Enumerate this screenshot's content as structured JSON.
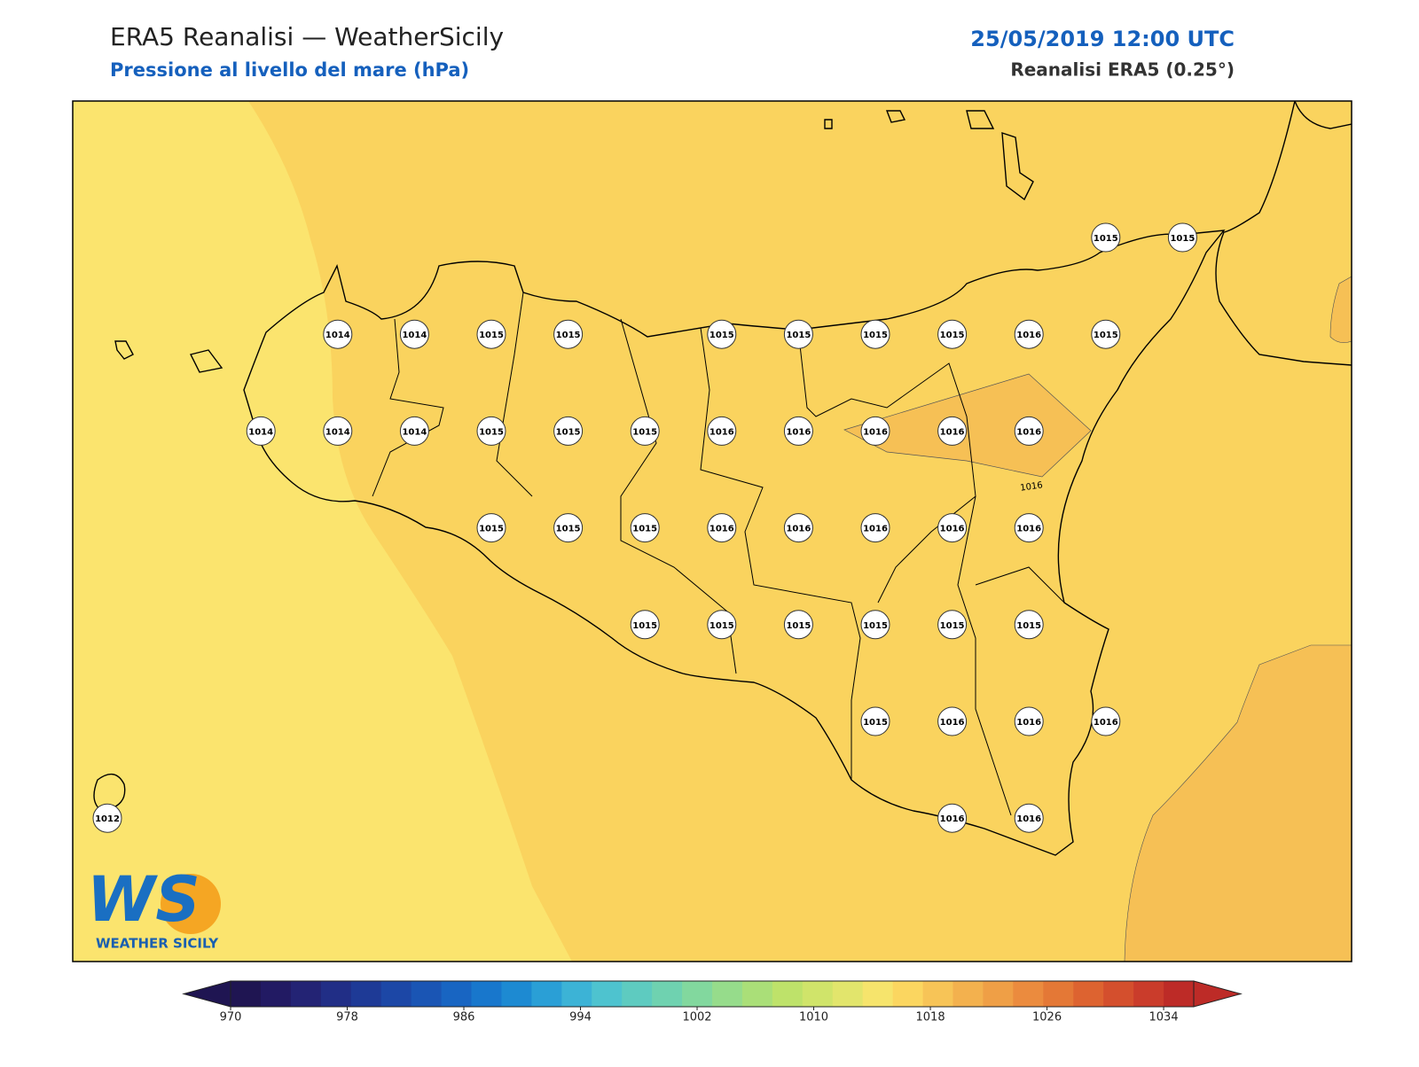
{
  "header": {
    "title": "ERA5 Reanalisi — WeatherSicily",
    "subtitle": "Pressione al livello del mare (hPa)",
    "datetime": "25/05/2019 12:00 UTC",
    "source": "Reanalisi ERA5 (0.25°)"
  },
  "map": {
    "stations": [
      [
        null,
        null,
        null,
        null,
        null,
        null,
        null,
        null,
        null,
        null,
        null,
        null,
        null,
        1015,
        1015
      ],
      [
        null,
        null,
        null,
        1014,
        1014,
        1015,
        1015,
        null,
        1015,
        1015,
        1015,
        1015,
        1016,
        1015,
        null
      ],
      [
        null,
        null,
        1014,
        1014,
        1014,
        1015,
        1015,
        1015,
        1016,
        1016,
        1016,
        1016,
        1016,
        null,
        null
      ],
      [
        null,
        null,
        null,
        null,
        null,
        1015,
        1015,
        1015,
        1016,
        1016,
        1016,
        1016,
        1016,
        null,
        null
      ],
      [
        null,
        null,
        null,
        null,
        null,
        null,
        null,
        1015,
        1015,
        1015,
        1015,
        1015,
        1015,
        null,
        null
      ],
      [
        null,
        null,
        null,
        null,
        null,
        null,
        null,
        null,
        null,
        null,
        1015,
        1016,
        1016,
        1016,
        null
      ],
      [
        1012,
        null,
        null,
        null,
        null,
        null,
        null,
        null,
        null,
        null,
        null,
        1016,
        1016,
        null,
        null
      ]
    ],
    "contour_label": "1016"
  },
  "logo": {
    "mark": "WS",
    "name": "WEATHER SICILY"
  },
  "colorbar": {
    "lim": [
      970,
      1034
    ],
    "ticks": [
      970,
      978,
      986,
      994,
      1002,
      1010,
      1018,
      1026,
      1034
    ],
    "colors": [
      "#1f1552",
      "#221a63",
      "#232374",
      "#212e86",
      "#1e3a96",
      "#1c47a6",
      "#1a55b4",
      "#1865c2",
      "#1877cc",
      "#1d8ad2",
      "#2a9fd6",
      "#3cb3d6",
      "#4ec3cf",
      "#5ecbc0",
      "#6fd2b0",
      "#82d89e",
      "#96dc8b",
      "#aadf78",
      "#bee26a",
      "#d0e46a",
      "#e2e56c",
      "#f6e46c",
      "#fbd660",
      "#f7c457",
      "#f3b14e",
      "#ef9f46",
      "#eb8b3e",
      "#e47836",
      "#dd6330",
      "#d44f2d",
      "#ca3c2b",
      "#bd2b27"
    ]
  }
}
